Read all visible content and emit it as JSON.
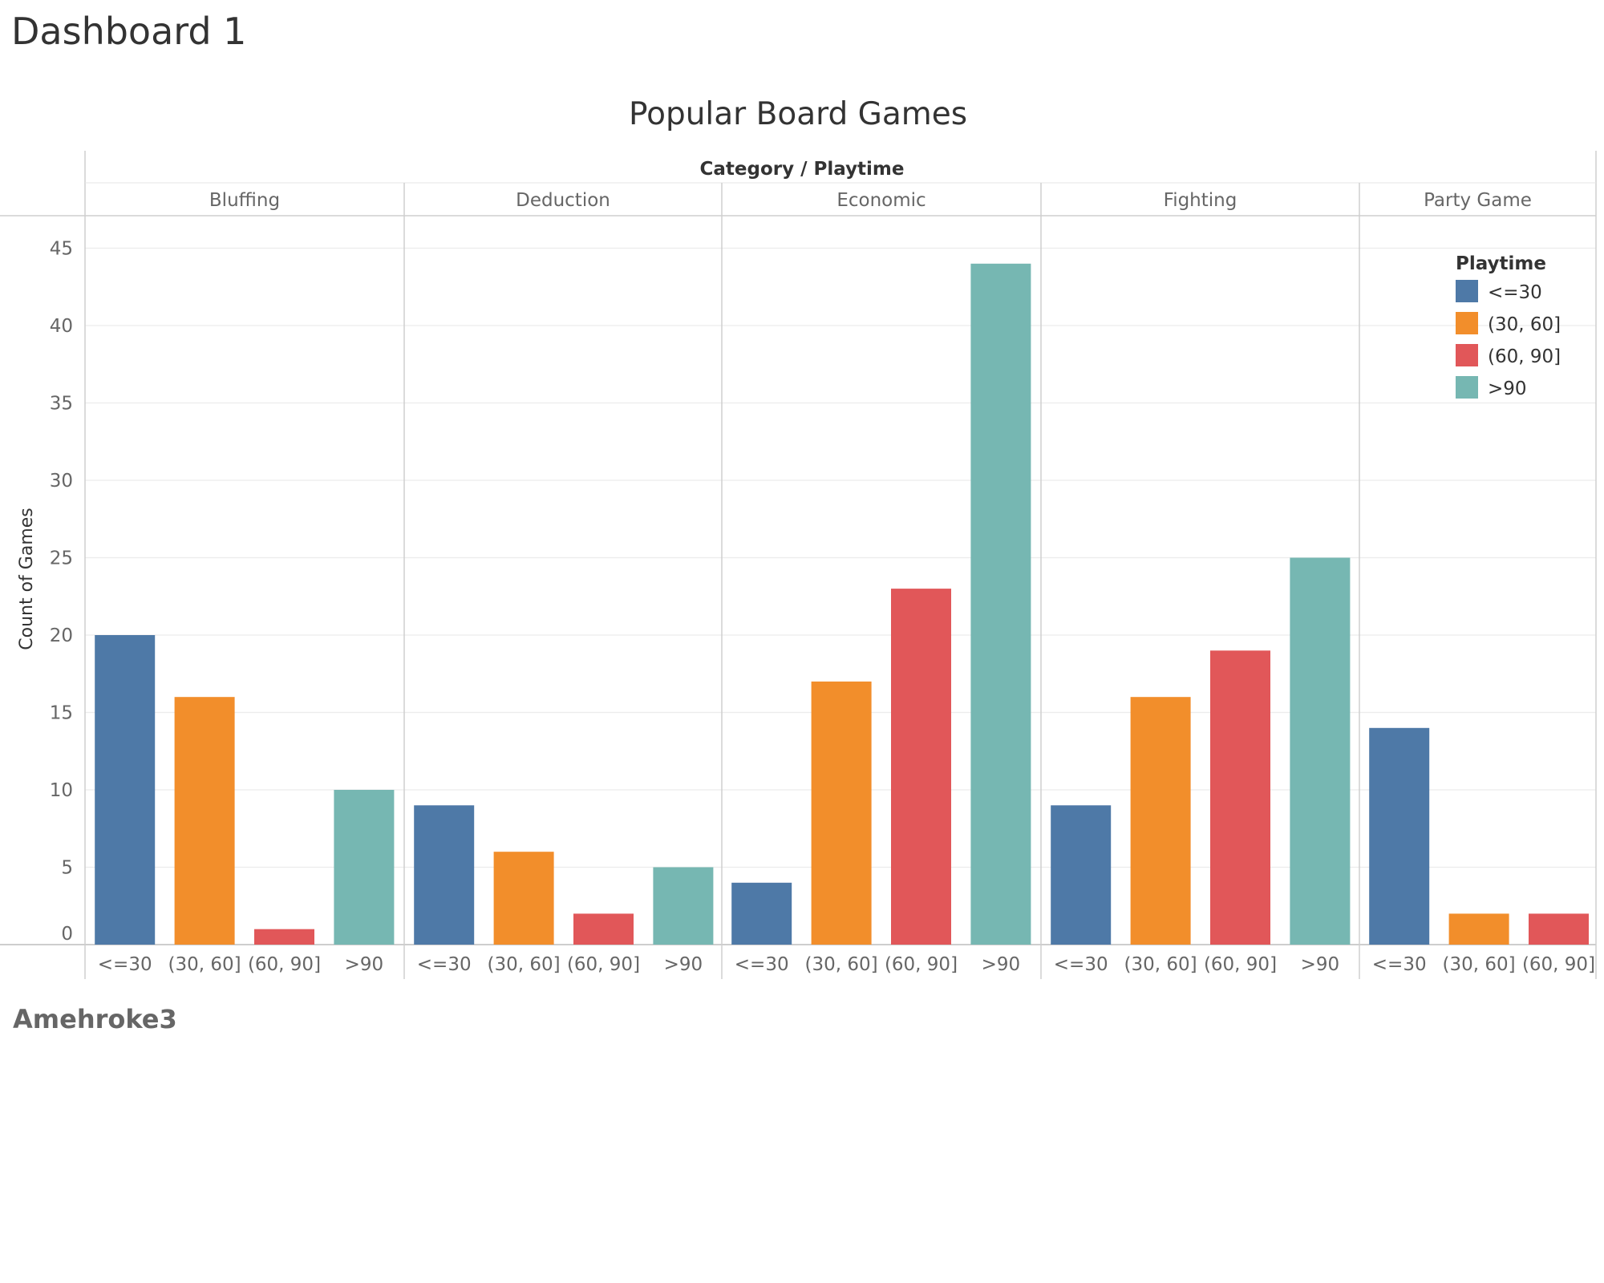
{
  "dashboard": {
    "title": "Dashboard 1",
    "author": "Amehroke3"
  },
  "chart_data": {
    "type": "bar",
    "title": "Popular Board Games",
    "column_header_title": "Category / Playtime",
    "ylabel": "Count of Games",
    "xlabel": "",
    "ylim": [
      0,
      47
    ],
    "yticks": [
      0,
      5,
      10,
      15,
      20,
      25,
      30,
      35,
      40,
      45
    ],
    "grid": true,
    "legend": {
      "title": "Playtime",
      "placement": "top-right",
      "entries": [
        {
          "label": "<=30",
          "color": "#4e79a7"
        },
        {
          "label": "(30, 60]",
          "color": "#f28e2b"
        },
        {
          "label": "(60, 90]",
          "color": "#e15759"
        },
        {
          "label": ">90",
          "color": "#76b7b2"
        }
      ]
    },
    "categories": [
      "Bluffing",
      "Deduction",
      "Economic",
      "Fighting",
      "Party Game"
    ],
    "groups": [
      {
        "category": "Bluffing",
        "bars": [
          {
            "playtime": "<=30",
            "value": 20
          },
          {
            "playtime": "(30, 60]",
            "value": 16
          },
          {
            "playtime": "(60, 90]",
            "value": 1
          },
          {
            "playtime": ">90",
            "value": 10
          }
        ]
      },
      {
        "category": "Deduction",
        "bars": [
          {
            "playtime": "<=30",
            "value": 9
          },
          {
            "playtime": "(30, 60]",
            "value": 6
          },
          {
            "playtime": "(60, 90]",
            "value": 2
          },
          {
            "playtime": ">90",
            "value": 5
          }
        ]
      },
      {
        "category": "Economic",
        "bars": [
          {
            "playtime": "<=30",
            "value": 4
          },
          {
            "playtime": "(30, 60]",
            "value": 17
          },
          {
            "playtime": "(60, 90]",
            "value": 23
          },
          {
            "playtime": ">90",
            "value": 44
          }
        ]
      },
      {
        "category": "Fighting",
        "bars": [
          {
            "playtime": "<=30",
            "value": 9
          },
          {
            "playtime": "(30, 60]",
            "value": 16
          },
          {
            "playtime": "(60, 90]",
            "value": 19
          },
          {
            "playtime": ">90",
            "value": 25
          }
        ]
      },
      {
        "category": "Party Game",
        "bars": [
          {
            "playtime": "<=30",
            "value": 14
          },
          {
            "playtime": "(30, 60]",
            "value": 2
          },
          {
            "playtime": "(60, 90]",
            "value": 2
          }
        ]
      }
    ]
  }
}
